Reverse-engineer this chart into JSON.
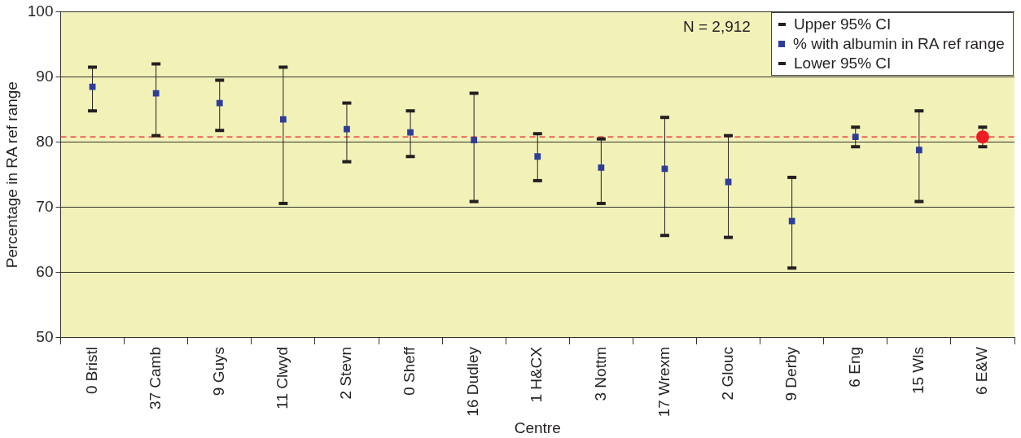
{
  "chart_data": {
    "type": "scatter",
    "xlabel": "Centre",
    "ylabel": "Percentage in RA ref range",
    "categories": [
      "0 Bristl",
      "37 Camb",
      "9 Guys",
      "11 Clwyd",
      "2 Stevn",
      "0 Sheff",
      "16 Dudley",
      "1 H&CX",
      "3 Nottm",
      "17 Wrexm",
      "2 Glouc",
      "9 Derby",
      "6 Eng",
      "15 Wls",
      "6 E&W"
    ],
    "series": [
      {
        "name": "Upper 95% CI",
        "color": "#231f20",
        "values": [
          91.5,
          92,
          89.5,
          91.5,
          86,
          84.8,
          87.5,
          81.3,
          80.5,
          83.8,
          81,
          74.6,
          82.3,
          84.8,
          82.3
        ]
      },
      {
        "name": "% with albumin in RA ref range",
        "color": "#2e3d98",
        "marker": "square",
        "values": [
          88.5,
          87.5,
          86,
          83.5,
          82,
          81.5,
          80.3,
          77.8,
          76.1,
          75.9,
          73.9,
          67.9,
          80.8,
          78.8,
          null
        ]
      },
      {
        "name": "Lower 95% CI",
        "color": "#231f20",
        "values": [
          84.8,
          81,
          81.8,
          70.6,
          77,
          77.8,
          70.9,
          74.1,
          70.6,
          65.7,
          65.4,
          60.7,
          79.3,
          70.9,
          79.3
        ]
      },
      {
        "color": "#ed1c24",
        "marker": "circle",
        "values": [
          null,
          null,
          null,
          null,
          null,
          null,
          null,
          null,
          null,
          null,
          null,
          null,
          null,
          null,
          80.8
        ]
      }
    ],
    "ylim": [
      50,
      100
    ],
    "yticks": [
      50,
      60,
      70,
      80,
      90,
      100
    ],
    "grid": "y",
    "legend": "top right",
    "ref_lines": [
      {
        "axis": "y",
        "value": 80.8,
        "color": "#ed1c24",
        "line_style": "dashed"
      }
    ],
    "annotations": [
      "N = 2,912"
    ]
  }
}
